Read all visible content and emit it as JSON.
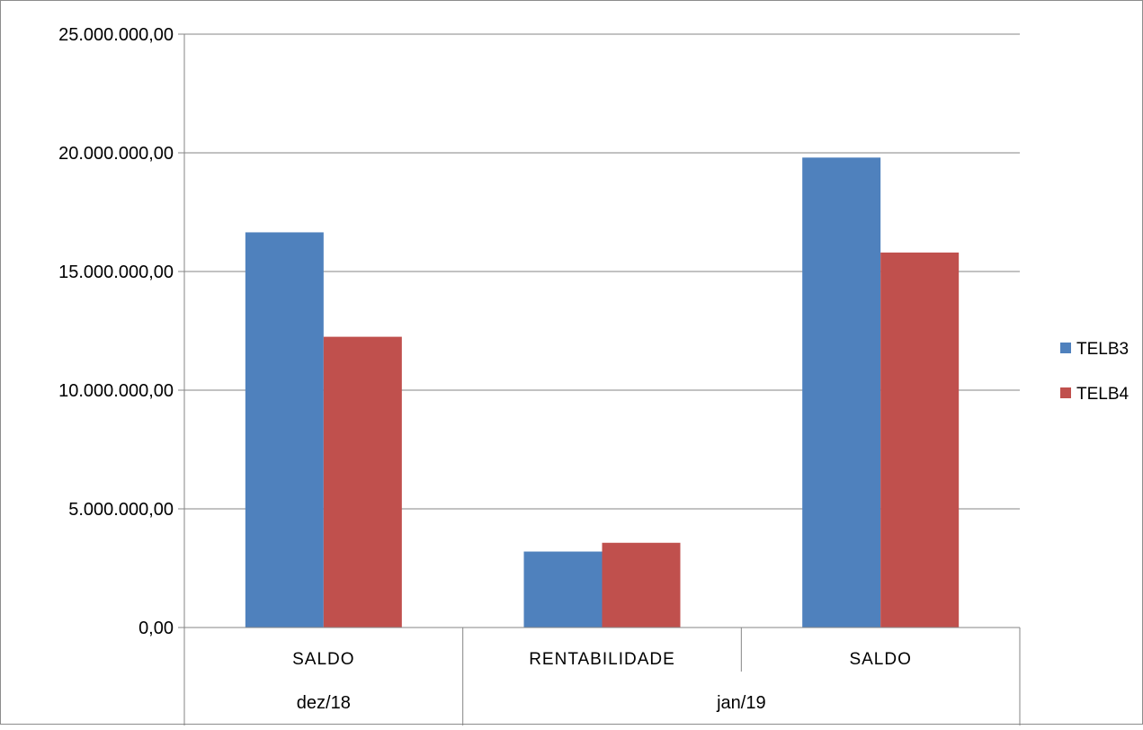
{
  "chart_data": {
    "type": "bar",
    "title": "",
    "xlabel": "",
    "ylabel": "",
    "ylim": [
      0,
      25000000
    ],
    "y_ticks": [
      0,
      5000000,
      10000000,
      15000000,
      20000000,
      25000000
    ],
    "y_tick_labels": [
      "0,00",
      "5.000.000,00",
      "10.000.000,00",
      "15.000.000,00",
      "20.000.000,00",
      "25.000.000,00"
    ],
    "categories": [
      "SALDO",
      "RENTABILIDADE",
      "SALDO"
    ],
    "category_groups": [
      {
        "label": "dez/18",
        "span": 1
      },
      {
        "label": "jan/19",
        "span": 2
      }
    ],
    "series": [
      {
        "name": "TELB3",
        "color": "#4f81bd",
        "values": [
          16650000,
          3200000,
          19800000
        ]
      },
      {
        "name": "TELB4",
        "color": "#c0504d",
        "values": [
          12250000,
          3570000,
          15800000
        ]
      }
    ],
    "grid": true,
    "legend_position": "right"
  }
}
